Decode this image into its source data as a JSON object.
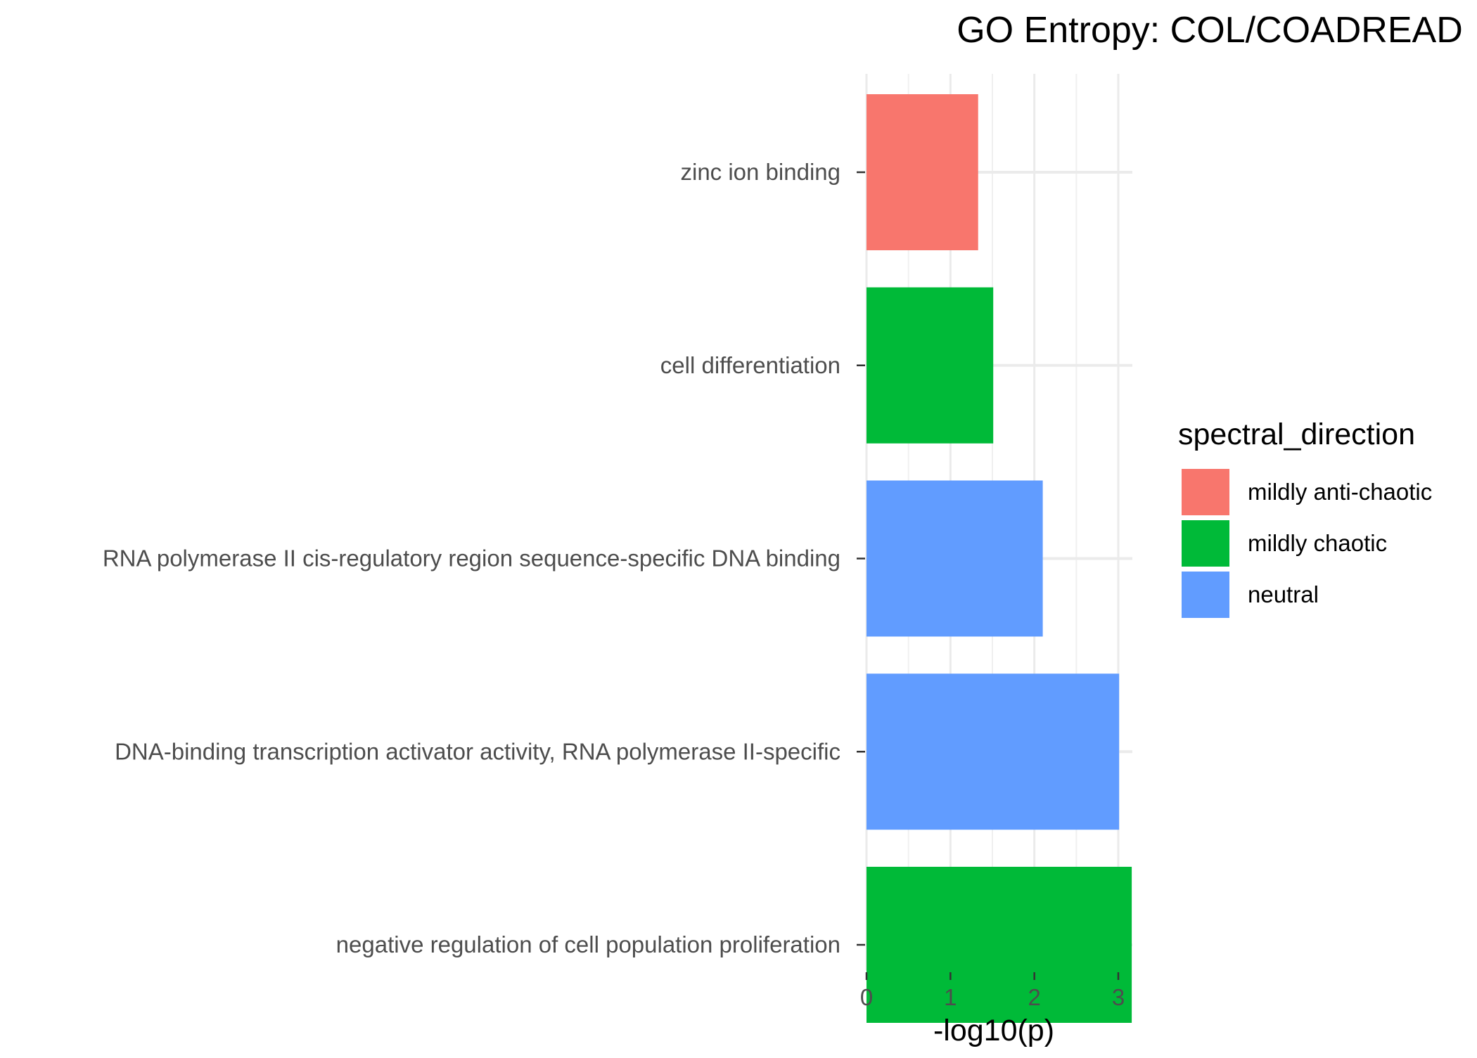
{
  "chart_data": {
    "type": "bar",
    "orientation": "horizontal",
    "title": "GO Entropy: COL/COADREAD",
    "xlabel": "-log10(p)",
    "ylabel": "",
    "xlim": [
      0,
      3.15
    ],
    "x_ticks": [
      0,
      1,
      2,
      3
    ],
    "grid": true,
    "legend": {
      "title": "spectral_direction",
      "placement": "right",
      "entries": [
        {
          "label": "mildly anti-chaotic",
          "color": "#F8766D"
        },
        {
          "label": "mildly chaotic",
          "color": "#00BA38"
        },
        {
          "label": "neutral",
          "color": "#619CFF"
        }
      ]
    },
    "categories": [
      "zinc ion binding",
      "cell differentiation",
      "RNA polymerase II cis-regulatory region sequence-specific DNA binding",
      "DNA-binding transcription activator activity, RNA polymerase II-specific",
      "negative regulation of cell population proliferation"
    ],
    "values": [
      1.33,
      1.51,
      2.1,
      3.01,
      3.16
    ],
    "groups": [
      "mildly anti-chaotic",
      "mildly chaotic",
      "neutral",
      "neutral",
      "mildly chaotic"
    ]
  }
}
